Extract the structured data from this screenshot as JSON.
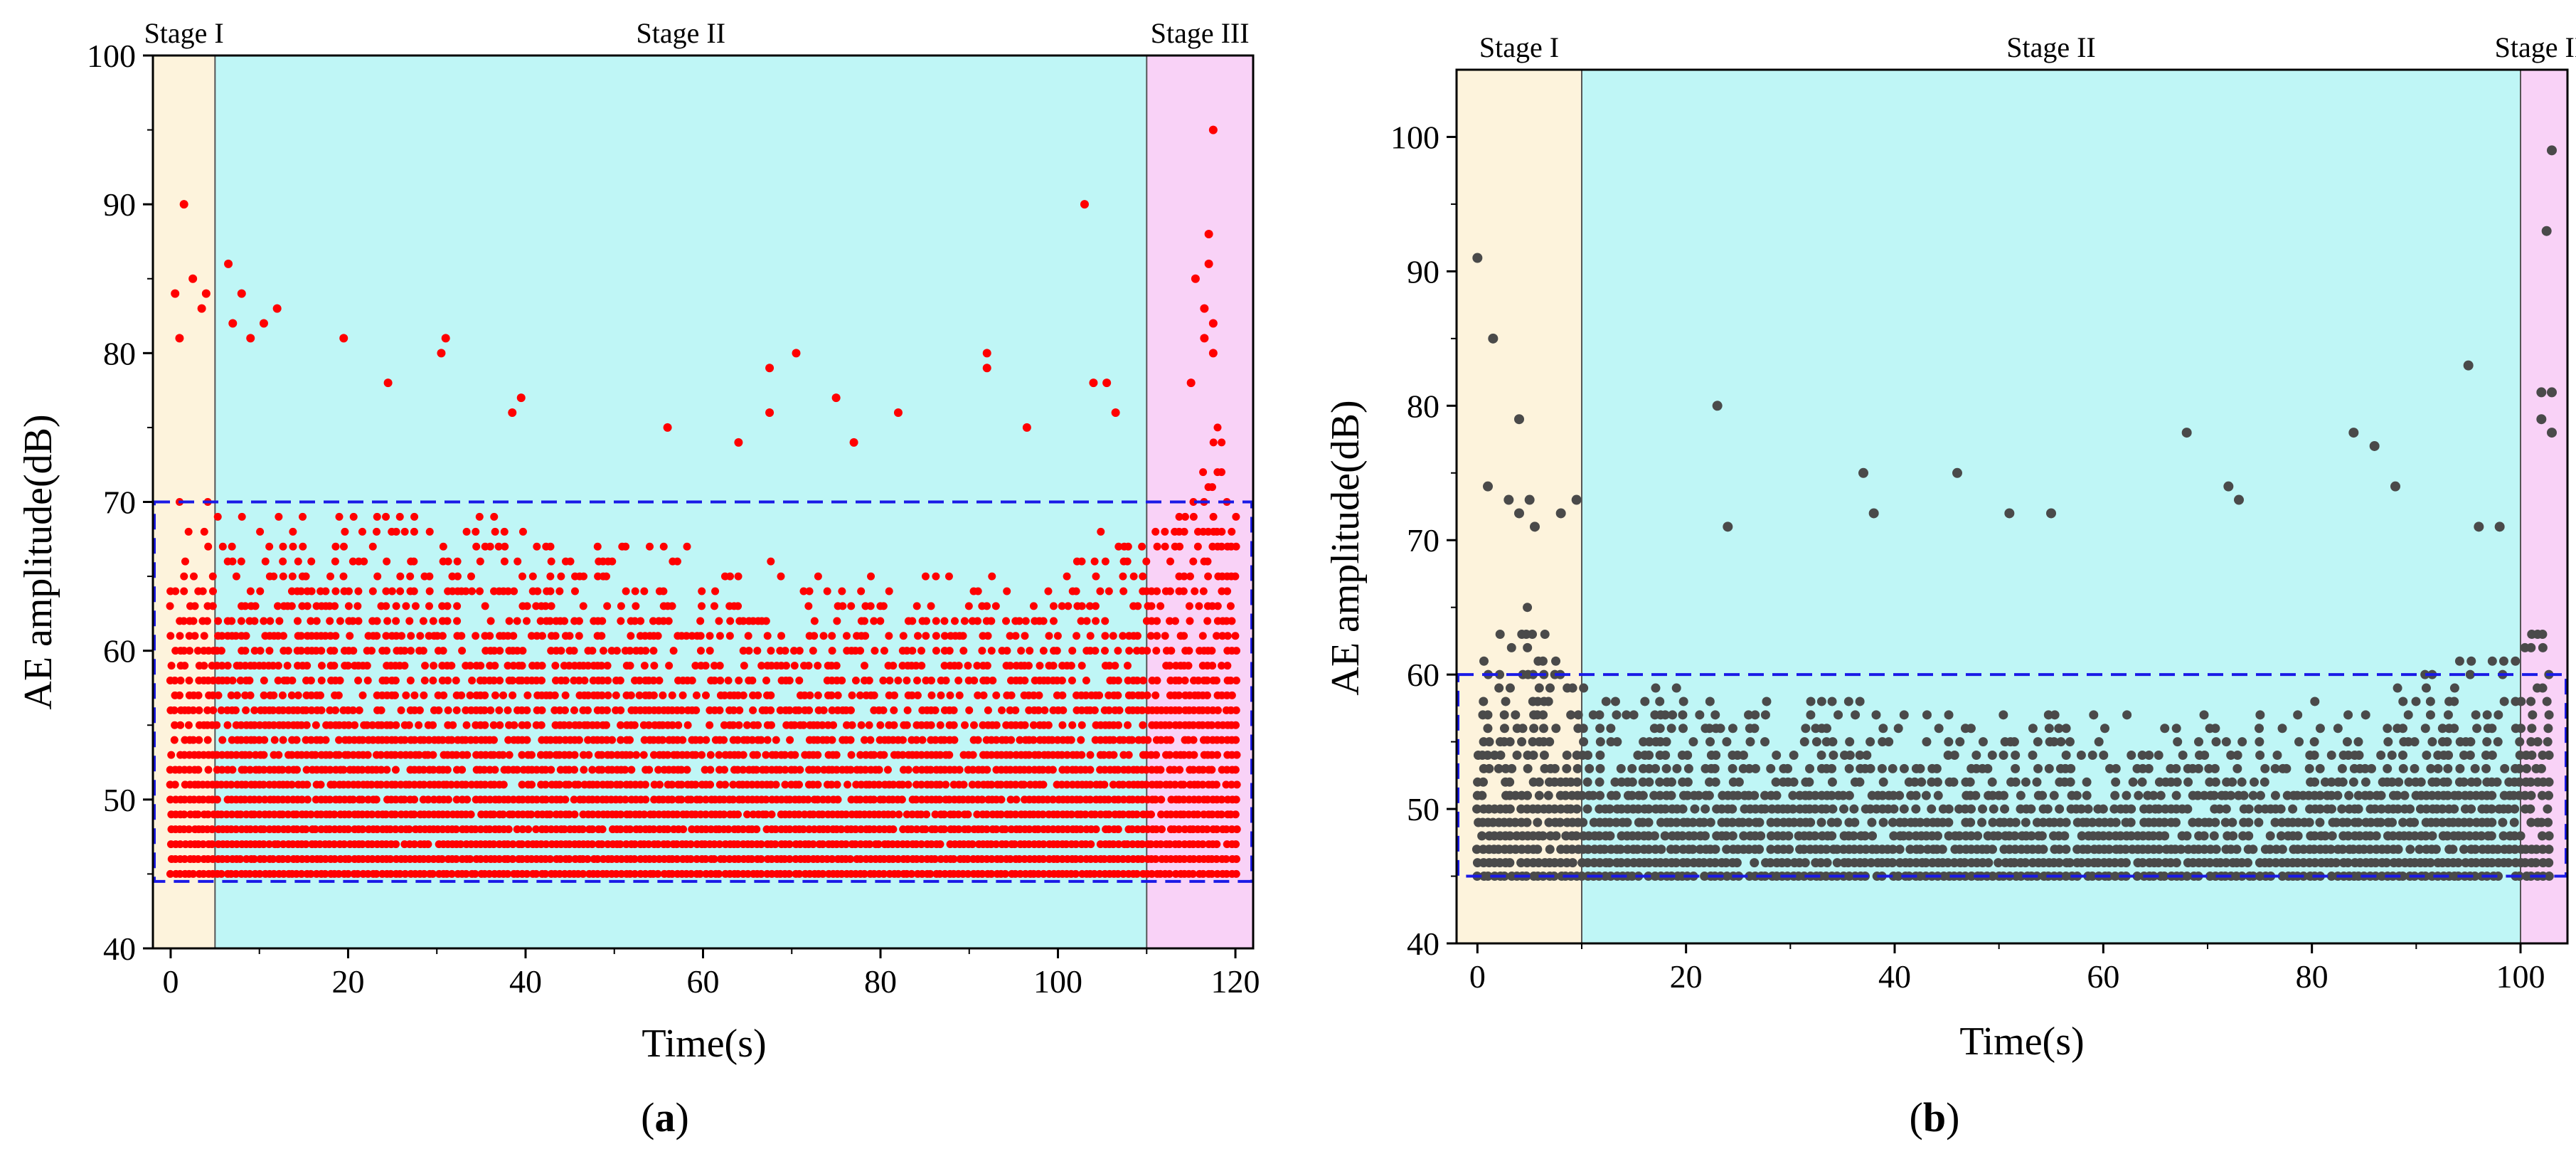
{
  "chart_data": [
    {
      "type": "scatter",
      "panel_label": "(a)",
      "panel_letter": "a",
      "xlabel": "Time(s)",
      "ylabel": "AE amplitude(dB)",
      "xlim": [
        -2,
        122
      ],
      "ylim": [
        40,
        100
      ],
      "xticks": [
        "0",
        "20",
        "40",
        "60",
        "80",
        "100",
        "120"
      ],
      "yticks": [
        "40",
        "50",
        "60",
        "70",
        "80",
        "90",
        "100"
      ],
      "marker_color": "#ff0000",
      "stages": [
        {
          "label": "Stage I",
          "start": -2,
          "end": 5,
          "color": "#fdf3dc"
        },
        {
          "label": "Stage II",
          "start": 5,
          "end": 110,
          "color": "#bff6f6"
        },
        {
          "label": "Stage III",
          "start": 110,
          "end": 122,
          "color": "#f9d2f7"
        }
      ],
      "dense_band": {
        "y_min": 45,
        "y_max": 70
      },
      "dashed_box": {
        "x_start": -2,
        "x_end": 122,
        "y_min": 44.5,
        "y_max": 70
      },
      "dashed_color": "#1a1ae6",
      "amplitude_profile": [
        [
          0,
          70
        ],
        [
          2,
          72
        ],
        [
          5,
          70
        ],
        [
          10,
          70
        ],
        [
          20,
          70
        ],
        [
          40,
          69
        ],
        [
          60,
          67
        ],
        [
          80,
          65
        ],
        [
          95,
          66
        ],
        [
          100,
          67
        ],
        [
          110,
          70
        ],
        [
          113,
          72
        ],
        [
          118,
          76
        ],
        [
          120,
          72
        ]
      ],
      "points": [
        {
          "x": 1.5,
          "y": 90
        },
        {
          "x": 2.5,
          "y": 85
        },
        {
          "x": 4,
          "y": 84
        },
        {
          "x": 3.5,
          "y": 83
        },
        {
          "x": 0.5,
          "y": 84
        },
        {
          "x": 1,
          "y": 81
        },
        {
          "x": 6.5,
          "y": 86
        },
        {
          "x": 7,
          "y": 82
        },
        {
          "x": 8,
          "y": 84
        },
        {
          "x": 9,
          "y": 81
        },
        {
          "x": 10.5,
          "y": 82
        },
        {
          "x": 12,
          "y": 83
        },
        {
          "x": 19.5,
          "y": 81
        },
        {
          "x": 30.5,
          "y": 80
        },
        {
          "x": 31,
          "y": 81
        },
        {
          "x": 24.5,
          "y": 78
        },
        {
          "x": 39.5,
          "y": 77
        },
        {
          "x": 38.5,
          "y": 76
        },
        {
          "x": 56,
          "y": 75
        },
        {
          "x": 64,
          "y": 74
        },
        {
          "x": 67.5,
          "y": 79
        },
        {
          "x": 67.5,
          "y": 76
        },
        {
          "x": 70.5,
          "y": 80
        },
        {
          "x": 75,
          "y": 77
        },
        {
          "x": 77,
          "y": 74
        },
        {
          "x": 82,
          "y": 76
        },
        {
          "x": 92,
          "y": 80
        },
        {
          "x": 92,
          "y": 79
        },
        {
          "x": 96.5,
          "y": 75
        },
        {
          "x": 103,
          "y": 90
        },
        {
          "x": 104,
          "y": 78
        },
        {
          "x": 105.5,
          "y": 78
        },
        {
          "x": 106.5,
          "y": 76
        },
        {
          "x": 115.5,
          "y": 85
        },
        {
          "x": 116.5,
          "y": 83
        },
        {
          "x": 117,
          "y": 88
        },
        {
          "x": 117,
          "y": 86
        },
        {
          "x": 117.5,
          "y": 95
        },
        {
          "x": 117.5,
          "y": 82
        },
        {
          "x": 116.5,
          "y": 81
        },
        {
          "x": 117.5,
          "y": 80
        },
        {
          "x": 115,
          "y": 78
        }
      ]
    },
    {
      "type": "scatter",
      "panel_label": "(b)",
      "panel_letter": "b",
      "xlabel": "Time(s)",
      "ylabel": "AE amplitude(dB)",
      "xlim": [
        -2,
        104.5
      ],
      "ylim": [
        40,
        105
      ],
      "xticks": [
        "0",
        "20",
        "40",
        "60",
        "80",
        "100"
      ],
      "yticks": [
        "40",
        "50",
        "60",
        "70",
        "80",
        "90",
        "100"
      ],
      "marker_color": "#4a4a4a",
      "stages": [
        {
          "label": "Stage I",
          "start": -2,
          "end": 10,
          "color": "#fdf3dc"
        },
        {
          "label": "Stage II",
          "start": 10,
          "end": 100,
          "color": "#bff6f6"
        },
        {
          "label": "Stage III",
          "start": 100,
          "end": 104.5,
          "color": "#f9d2f7"
        }
      ],
      "dense_band": {
        "y_min": 45,
        "y_max": 60
      },
      "dashed_box": {
        "x_start": -2,
        "x_end": 104.5,
        "y_min": 45,
        "y_max": 60
      },
      "dashed_color": "#1a1ae6",
      "amplitude_profile": [
        [
          0,
          62
        ],
        [
          3,
          66
        ],
        [
          6,
          65
        ],
        [
          10,
          60
        ],
        [
          20,
          59
        ],
        [
          40,
          58
        ],
        [
          60,
          57
        ],
        [
          80,
          58
        ],
        [
          90,
          60
        ],
        [
          97,
          62
        ],
        [
          100,
          62
        ],
        [
          102,
          66
        ],
        [
          104,
          68
        ]
      ],
      "points": [
        {
          "x": 0,
          "y": 91
        },
        {
          "x": 1.5,
          "y": 85
        },
        {
          "x": 4,
          "y": 79
        },
        {
          "x": 1,
          "y": 74
        },
        {
          "x": 3,
          "y": 73
        },
        {
          "x": 4,
          "y": 72
        },
        {
          "x": 5,
          "y": 73
        },
        {
          "x": 5.5,
          "y": 71
        },
        {
          "x": 8,
          "y": 72
        },
        {
          "x": 9.5,
          "y": 73
        },
        {
          "x": 23,
          "y": 80
        },
        {
          "x": 24,
          "y": 71
        },
        {
          "x": 37,
          "y": 75
        },
        {
          "x": 38,
          "y": 72
        },
        {
          "x": 46,
          "y": 75
        },
        {
          "x": 51,
          "y": 72
        },
        {
          "x": 55,
          "y": 72
        },
        {
          "x": 68,
          "y": 78
        },
        {
          "x": 72,
          "y": 74
        },
        {
          "x": 73,
          "y": 73
        },
        {
          "x": 84,
          "y": 78
        },
        {
          "x": 86,
          "y": 77
        },
        {
          "x": 88,
          "y": 74
        },
        {
          "x": 95,
          "y": 83
        },
        {
          "x": 103,
          "y": 99
        },
        {
          "x": 102.5,
          "y": 93
        },
        {
          "x": 102,
          "y": 81
        },
        {
          "x": 103,
          "y": 81
        },
        {
          "x": 102,
          "y": 79
        },
        {
          "x": 103,
          "y": 78
        },
        {
          "x": 96,
          "y": 71
        },
        {
          "x": 98,
          "y": 71
        }
      ]
    }
  ]
}
